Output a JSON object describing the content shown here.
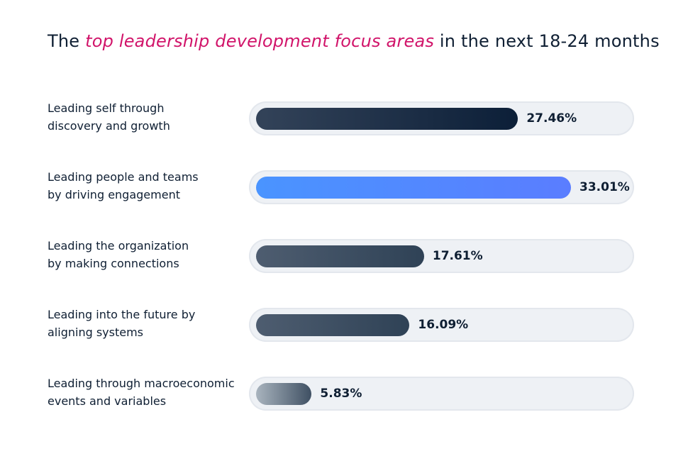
{
  "title": {
    "prefix": "The ",
    "highlight": "top leadership development focus areas",
    "suffix": " in the next 18-24 months"
  },
  "chart_data": {
    "type": "bar",
    "orientation": "horizontal",
    "xlim": [
      0,
      40
    ],
    "categories": [
      [
        "Leading self through",
        "discovery and growth"
      ],
      [
        "Leading people and teams",
        "by driving engagement"
      ],
      [
        "Leading the organization",
        "by making connections"
      ],
      [
        "Leading into the future by",
        "aligning systems"
      ],
      [
        "Leading through macroeconomic",
        "events and variables"
      ]
    ],
    "values": [
      27.46,
      33.01,
      17.61,
      16.09,
      5.83
    ],
    "value_labels": [
      "27.46%",
      "33.01%",
      "17.61%",
      "16.09%",
      "5.83%"
    ],
    "colors": [
      [
        "#334359",
        "#0c1f38"
      ],
      [
        "#4a94ff",
        "#5a7dff"
      ],
      [
        "#4e5d70",
        "#2f4256"
      ],
      [
        "#4e5d70",
        "#2f4256"
      ],
      [
        "#a9b4be",
        "#3f5063"
      ]
    ],
    "highlight_color": "#d1146a"
  }
}
